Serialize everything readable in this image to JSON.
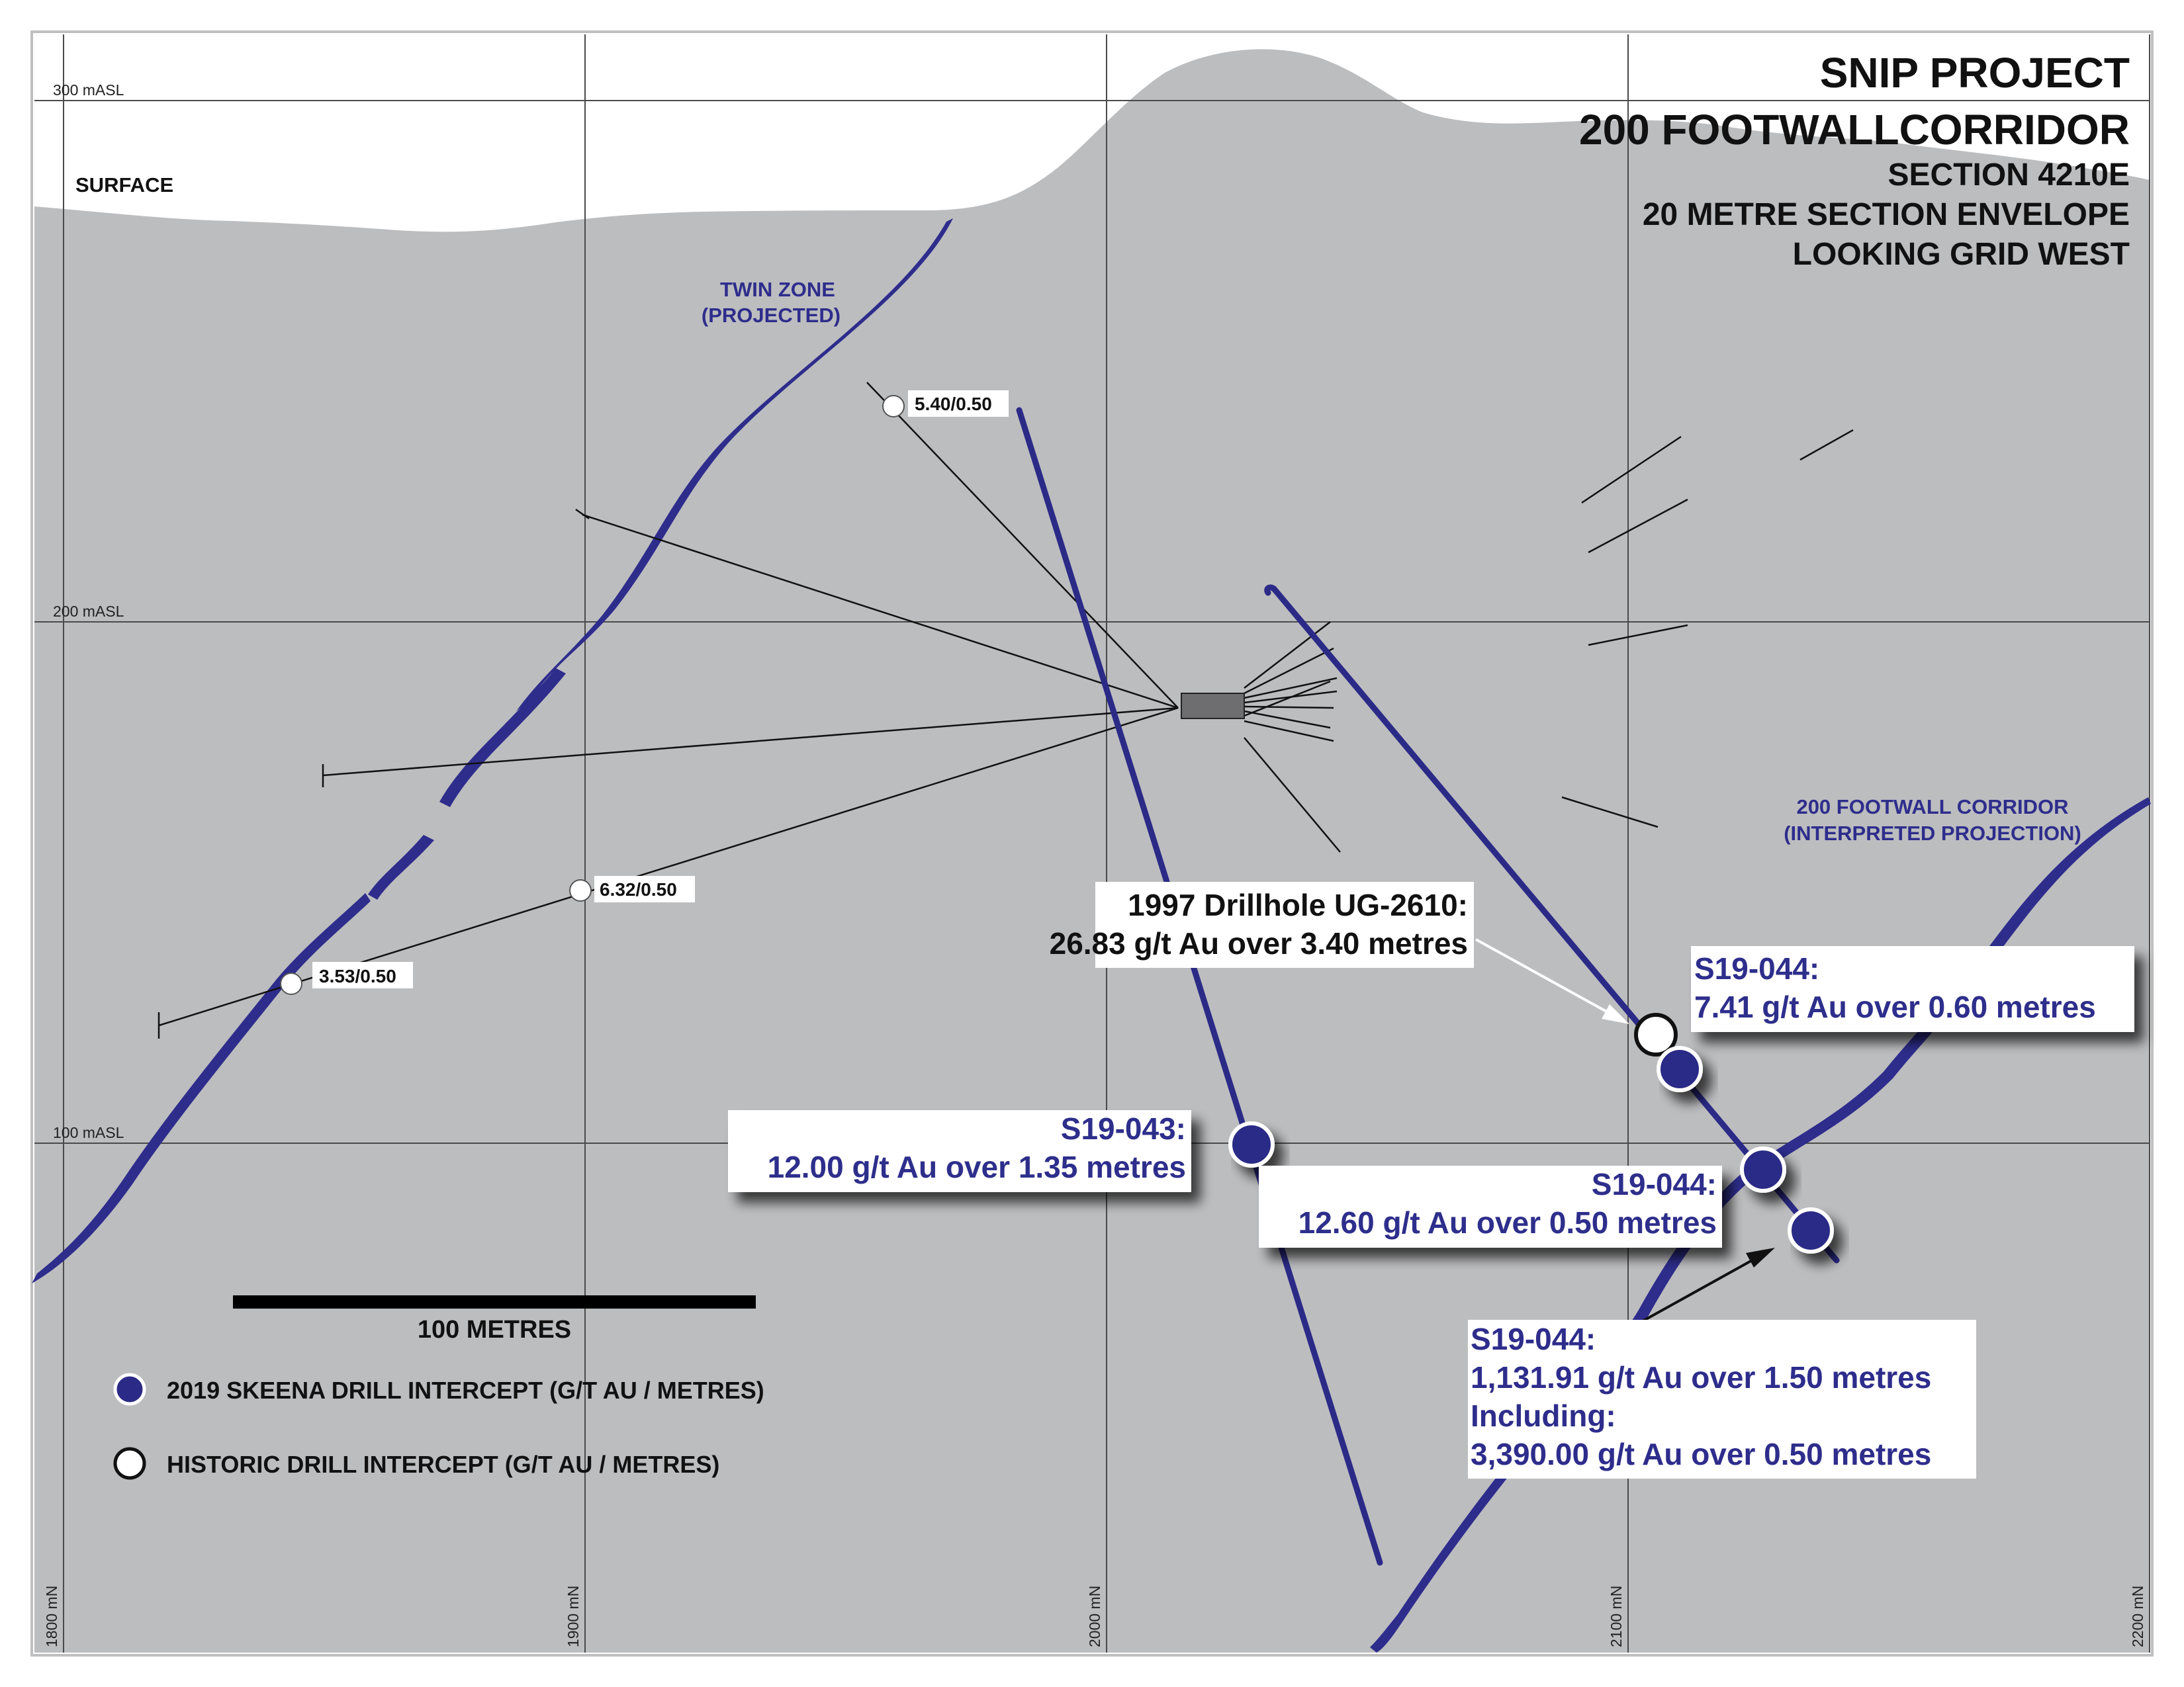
{
  "title": {
    "line1": "SNIP PROJECT",
    "line2": "200 FOOTWALLCORRIDOR",
    "line3": "SECTION 4210E",
    "line4": "20 METRE SECTION ENVELOPE",
    "line5": "LOOKING GRID WEST"
  },
  "elevation_labels": [
    "300 mASL",
    "200 mASL",
    "100 mASL"
  ],
  "northing_labels": [
    "1800 mN",
    "1900 mN",
    "2000 mN",
    "2100 mN",
    "2200 mN"
  ],
  "surface_label": "SURFACE",
  "zones": {
    "twin_line1": "TWIN ZONE",
    "twin_line2": "(PROJECTED)",
    "footwall_line1": "200 FOOTWALL CORRIDOR",
    "footwall_line2": "(INTERPRETED PROJECTION)"
  },
  "historic_intercepts": {
    "a": "5.40/0.50",
    "b": "6.32/0.50",
    "c": "3.53/0.50"
  },
  "callouts": {
    "ug2610_line1": "1997 Drillhole UG-2610:",
    "ug2610_line2": "26.83 g/t Au over 3.40 metres",
    "s19044a_line1": "S19-044:",
    "s19044a_line2": "7.41 g/t Au over 0.60 metres",
    "s19043_line1": "S19-043:",
    "s19043_line2": "12.00 g/t Au over 1.35 metres",
    "s19044b_line1": "S19-044:",
    "s19044b_line2": "12.60 g/t Au over 0.50 metres",
    "s19044c_line1": "S19-044:",
    "s19044c_line2": "1,131.91 g/t Au over 1.50 metres",
    "s19044c_line3": "Including:",
    "s19044c_line4": "3,390.00 g/t Au over 0.50 metres"
  },
  "scale_bar": {
    "label": "100 METRES"
  },
  "legend": {
    "skeena": "2019 SKEENA DRILL INTERCEPT (G/T AU / METRES)",
    "historic": "HISTORIC DRILL INTERCEPT (G/T AU / METRES)"
  },
  "colors": {
    "rock": "#bcbdbf",
    "zone_blue": "#2e2d8c",
    "intercept_blue": "#2b2a87",
    "grid": "#4a4a4a"
  }
}
